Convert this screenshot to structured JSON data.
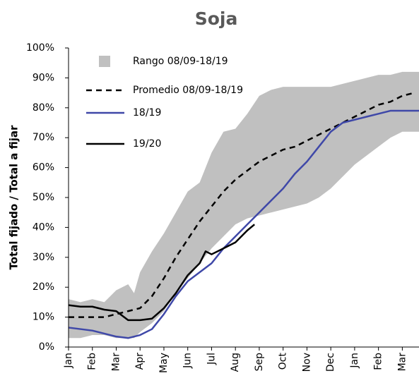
{
  "chart_data": {
    "type": "line",
    "title": "Soja",
    "y_label": "Total fijado / Total a fijar",
    "xlim": [
      0,
      14.7
    ],
    "xticks": [
      {
        "value": 0,
        "label": "Jan"
      },
      {
        "value": 1,
        "label": "Feb"
      },
      {
        "value": 2,
        "label": "Mar"
      },
      {
        "value": 3,
        "label": "Apr"
      },
      {
        "value": 4,
        "label": "May"
      },
      {
        "value": 5,
        "label": "Jun"
      },
      {
        "value": 6,
        "label": "Jul"
      },
      {
        "value": 7,
        "label": "Aug"
      },
      {
        "value": 8,
        "label": "Sep"
      },
      {
        "value": 9,
        "label": "Oct"
      },
      {
        "value": 10,
        "label": "Nov"
      },
      {
        "value": 11,
        "label": "Dec"
      },
      {
        "value": 12,
        "label": "Jan"
      },
      {
        "value": 13,
        "label": "Feb"
      },
      {
        "value": 14,
        "label": "Mar"
      }
    ],
    "ylim": [
      0,
      100
    ],
    "yticks": [
      {
        "value": 0,
        "label": "0%"
      },
      {
        "value": 10,
        "label": "10%"
      },
      {
        "value": 20,
        "label": "20%"
      },
      {
        "value": 30,
        "label": "30%"
      },
      {
        "value": 40,
        "label": "40%"
      },
      {
        "value": 50,
        "label": "50%"
      },
      {
        "value": 60,
        "label": "60%"
      },
      {
        "value": 70,
        "label": "70%"
      },
      {
        "value": 80,
        "label": "80%"
      },
      {
        "value": 90,
        "label": "90%"
      },
      {
        "value": 100,
        "label": "100%"
      }
    ],
    "grid": false,
    "series": [
      {
        "name": "Rango 08/09-18/19",
        "kind": "band",
        "color": "#c0c0c0",
        "x": [
          0,
          0.5,
          1,
          1.5,
          2,
          2.5,
          2.75,
          3,
          3.5,
          4,
          4.5,
          5,
          5.5,
          6,
          6.5,
          7,
          7.5,
          8,
          8.5,
          9,
          9.5,
          10,
          10.5,
          11,
          11.5,
          12,
          12.5,
          13,
          13.5,
          14,
          14.7
        ],
        "upper": [
          16,
          15,
          16,
          15,
          19,
          21,
          18,
          25,
          32,
          38,
          45,
          52,
          55,
          65,
          72,
          73,
          78,
          84,
          86,
          87,
          87,
          87,
          87,
          87,
          88,
          89,
          90,
          91,
          91,
          92,
          92
        ],
        "lower": [
          3,
          3,
          4,
          4,
          3,
          3,
          3,
          5,
          8,
          12,
          18,
          23,
          28,
          33,
          37,
          41,
          43,
          44,
          45,
          46,
          47,
          48,
          50,
          53,
          57,
          61,
          64,
          67,
          70,
          72,
          72
        ]
      },
      {
        "name": "Promedio 08/09-18/19",
        "color": "#000000",
        "dash": true,
        "x": [
          0,
          0.5,
          1,
          1.5,
          2,
          2.5,
          3,
          3.5,
          4,
          4.5,
          5,
          5.5,
          6,
          6.5,
          7,
          7.5,
          8,
          8.5,
          9,
          9.5,
          10,
          10.5,
          11,
          11.5,
          12,
          12.5,
          13,
          13.5,
          14,
          14.5
        ],
        "values": [
          10,
          10,
          10,
          10,
          11,
          12,
          13,
          17,
          23,
          30,
          36,
          42,
          47,
          52,
          56,
          59,
          62,
          64,
          66,
          67,
          69,
          71,
          73,
          75,
          77,
          79,
          81,
          82,
          84,
          85
        ]
      },
      {
        "name": "18/19",
        "color": "#3f48a8",
        "x": [
          0,
          0.5,
          1,
          1.5,
          2,
          2.5,
          3,
          3.5,
          4,
          4.5,
          5,
          5.5,
          6,
          6.5,
          7,
          7.5,
          8,
          8.5,
          9,
          9.5,
          10,
          10.5,
          11,
          11.5,
          12,
          12.5,
          13,
          13.5,
          14,
          14.7
        ],
        "values": [
          6.5,
          6,
          5.5,
          4.5,
          3.5,
          3,
          4,
          6,
          11,
          17,
          22,
          25,
          28,
          33,
          37,
          41,
          45,
          49,
          53,
          58,
          62,
          67,
          72,
          75,
          76,
          77,
          78,
          79,
          79,
          79
        ]
      },
      {
        "name": "19/20",
        "color": "#000000",
        "x": [
          0,
          0.5,
          1,
          1.5,
          2,
          2.5,
          3,
          3.5,
          4,
          4.5,
          5,
          5.5,
          5.75,
          6,
          6.5,
          7,
          7.5,
          7.8
        ],
        "values": [
          14,
          13.5,
          13.5,
          12.5,
          12,
          9,
          9,
          9.5,
          13,
          18,
          24,
          28,
          32,
          31,
          33,
          35,
          39,
          41
        ]
      }
    ]
  }
}
